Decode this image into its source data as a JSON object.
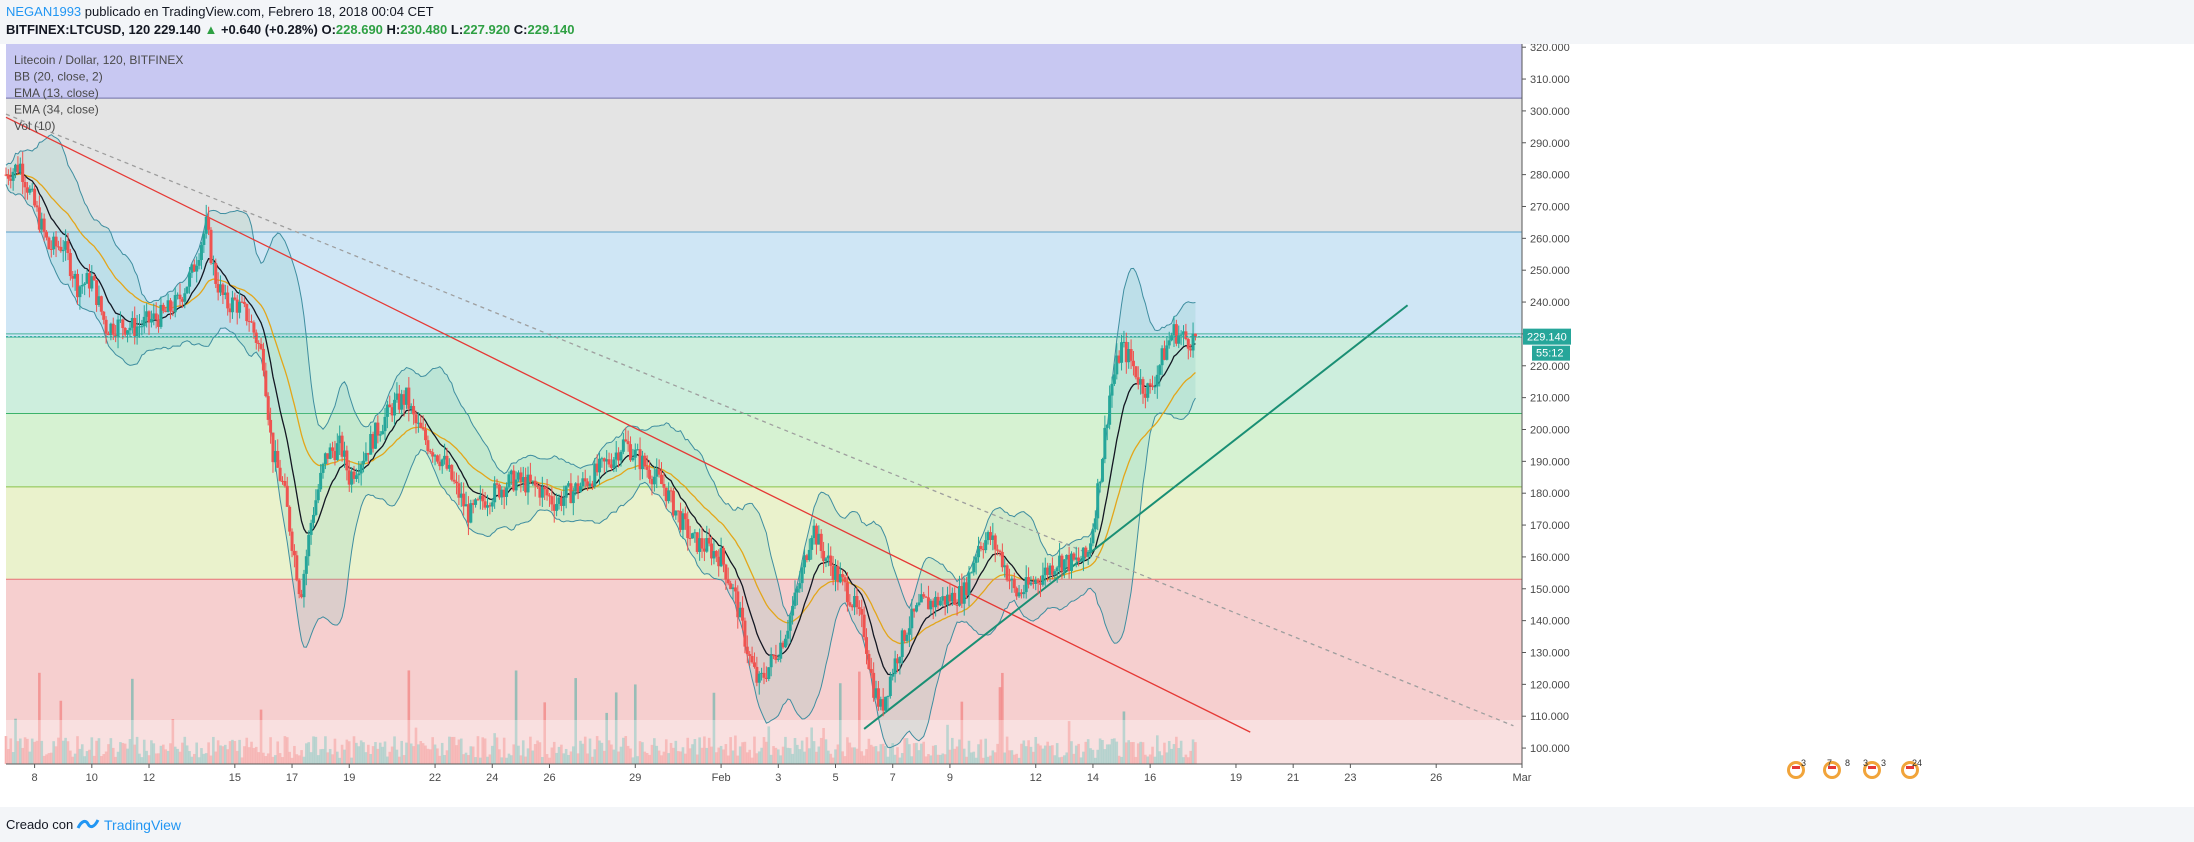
{
  "header": {
    "author": "NEGAN1993",
    "published": "publicado en TradingView.com, Febrero 18, 2018 00:04 CET",
    "symbol": "BITFINEX:LTCUSD, 120",
    "last": "229.140",
    "change": "+0.640 (+0.28%)",
    "o_label": "O:",
    "o_value": "228.690",
    "h_label": "H:",
    "h_value": "230.480",
    "l_label": "L:",
    "l_value": "227.920",
    "c_label": "C:",
    "c_value": "229.140"
  },
  "legend": [
    "Litecoin / Dollar, 120, BITFINEX",
    "BB (20, close, 2)",
    "EMA (13, close)",
    "EMA (34, close)",
    "Vol (10)"
  ],
  "footer": {
    "created_with": "Creado con",
    "brand": "TradingView"
  },
  "colors": {
    "up": "#26a69a",
    "down": "#ef5350",
    "bb_band": "#3f8ea0",
    "bb_fill": "#7fc8c0",
    "ema13": "#131722",
    "ema34": "#e3a61a",
    "trend_down": "#e53935",
    "trend_up": "#1a8f74",
    "dotted": "#9e9e9e",
    "price_tag": "#26a69a"
  },
  "chart_data": {
    "type": "candlestick",
    "symbol": "Litecoin / Dollar, 120, BITFINEX",
    "y_axis_ticks": [
      "100.000",
      "110.000",
      "120.000",
      "130.000",
      "140.000",
      "150.000",
      "160.000",
      "170.000",
      "180.000",
      "190.000",
      "200.000",
      "210.000",
      "220.000",
      "230.000",
      "240.000",
      "250.000",
      "260.000",
      "270.000",
      "280.000",
      "290.000",
      "300.000",
      "310.000",
      "320.000"
    ],
    "x_axis_ticks": [
      {
        "label": "8",
        "day": 8
      },
      {
        "label": "10",
        "day": 10
      },
      {
        "label": "12",
        "day": 12
      },
      {
        "label": "15",
        "day": 15
      },
      {
        "label": "17",
        "day": 17
      },
      {
        "label": "19",
        "day": 19
      },
      {
        "label": "22",
        "day": 22
      },
      {
        "label": "24",
        "day": 24
      },
      {
        "label": "26",
        "day": 26
      },
      {
        "label": "29",
        "day": 29
      },
      {
        "label": "Feb",
        "day": 32
      },
      {
        "label": "3",
        "day": 34
      },
      {
        "label": "5",
        "day": 36
      },
      {
        "label": "7",
        "day": 38
      },
      {
        "label": "9",
        "day": 40
      },
      {
        "label": "12",
        "day": 43
      },
      {
        "label": "14",
        "day": 45
      },
      {
        "label": "16",
        "day": 47
      },
      {
        "label": "19",
        "day": 50
      },
      {
        "label": "21",
        "day": 52
      },
      {
        "label": "23",
        "day": 54
      },
      {
        "label": "26",
        "day": 57
      },
      {
        "label": "Mar",
        "day": 60
      }
    ],
    "ylim": [
      95,
      321
    ],
    "xlim_days": [
      7,
      60
    ],
    "zones": [
      {
        "from": 304,
        "to": 321,
        "color": "#c8c8f2"
      },
      {
        "from": 262,
        "to": 304,
        "color": "#e4e4e4"
      },
      {
        "from": 229,
        "to": 262,
        "color": "#cfe6f5"
      },
      {
        "from": 205,
        "to": 229,
        "color": "#cdeedd"
      },
      {
        "from": 182,
        "to": 205,
        "color": "#d6f2d2"
      },
      {
        "from": 153,
        "to": 182,
        "color": "#eaf2cc"
      },
      {
        "from": 95,
        "to": 153,
        "color": "#f6cfcf"
      }
    ],
    "zone_lines": [
      {
        "value": 304,
        "color": "#6d6da8"
      },
      {
        "value": 262,
        "color": "#5aa0c8"
      },
      {
        "value": 230,
        "color": "#46b39a"
      },
      {
        "value": 229,
        "color": "#46b39a"
      },
      {
        "value": 205,
        "color": "#3bb36a"
      },
      {
        "value": 182,
        "color": "#8bc34a"
      },
      {
        "value": 153,
        "color": "#e57373"
      }
    ],
    "price_path": [
      [
        7.0,
        280
      ],
      [
        7.5,
        283
      ],
      [
        8.0,
        270
      ],
      [
        8.5,
        257
      ],
      [
        9.0,
        258
      ],
      [
        9.5,
        245
      ],
      [
        10.0,
        247
      ],
      [
        10.5,
        232
      ],
      [
        11.0,
        233
      ],
      [
        11.5,
        232
      ],
      [
        12.0,
        234
      ],
      [
        12.5,
        236
      ],
      [
        13.0,
        240
      ],
      [
        13.5,
        249
      ],
      [
        14.0,
        264
      ],
      [
        14.3,
        248
      ],
      [
        14.7,
        239
      ],
      [
        15.0,
        240
      ],
      [
        15.5,
        235
      ],
      [
        16.0,
        222
      ],
      [
        16.3,
        193
      ],
      [
        16.7,
        182
      ],
      [
        17.0,
        165
      ],
      [
        17.3,
        148
      ],
      [
        17.7,
        173
      ],
      [
        18.2,
        192
      ],
      [
        18.7,
        195
      ],
      [
        19.0,
        185
      ],
      [
        19.5,
        192
      ],
      [
        20.0,
        200
      ],
      [
        20.5,
        207
      ],
      [
        21.0,
        210
      ],
      [
        21.3,
        202
      ],
      [
        21.8,
        195
      ],
      [
        22.3,
        190
      ],
      [
        22.7,
        182
      ],
      [
        23.2,
        173
      ],
      [
        23.7,
        178
      ],
      [
        24.2,
        181
      ],
      [
        24.7,
        184
      ],
      [
        25.2,
        183
      ],
      [
        25.7,
        181
      ],
      [
        26.2,
        177
      ],
      [
        26.7,
        180
      ],
      [
        27.2,
        183
      ],
      [
        27.7,
        187
      ],
      [
        28.2,
        191
      ],
      [
        28.6,
        196
      ],
      [
        29.0,
        192
      ],
      [
        29.5,
        187
      ],
      [
        30.0,
        182
      ],
      [
        30.5,
        173
      ],
      [
        31.0,
        165
      ],
      [
        31.5,
        163
      ],
      [
        32.0,
        160
      ],
      [
        32.5,
        147
      ],
      [
        33.0,
        128
      ],
      [
        33.3,
        120
      ],
      [
        33.7,
        126
      ],
      [
        34.2,
        135
      ],
      [
        34.7,
        150
      ],
      [
        35.2,
        170
      ],
      [
        35.5,
        162
      ],
      [
        36.0,
        155
      ],
      [
        36.5,
        148
      ],
      [
        37.0,
        137
      ],
      [
        37.3,
        120
      ],
      [
        37.6,
        112
      ],
      [
        38.0,
        125
      ],
      [
        38.5,
        138
      ],
      [
        39.0,
        145
      ],
      [
        39.5,
        146
      ],
      [
        40.0,
        147
      ],
      [
        40.5,
        149
      ],
      [
        41.0,
        164
      ],
      [
        41.4,
        166
      ],
      [
        41.8,
        160
      ],
      [
        42.3,
        148
      ],
      [
        42.8,
        151
      ],
      [
        43.3,
        155
      ],
      [
        43.8,
        159
      ],
      [
        44.3,
        158
      ],
      [
        44.8,
        160
      ],
      [
        45.0,
        170
      ],
      [
        45.3,
        190
      ],
      [
        45.6,
        212
      ],
      [
        46.0,
        226
      ],
      [
        46.3,
        222
      ],
      [
        46.7,
        214
      ],
      [
        47.0,
        212
      ],
      [
        47.4,
        222
      ],
      [
        47.8,
        231
      ],
      [
        48.1,
        229
      ],
      [
        48.4,
        228
      ],
      [
        48.6,
        229.14
      ]
    ],
    "trendlines": [
      {
        "type": "resistance",
        "from": [
          7.0,
          298
        ],
        "to": [
          50.5,
          105
        ],
        "color": "#e53935"
      },
      {
        "type": "support",
        "from": [
          37.0,
          106
        ],
        "to": [
          56.0,
          239
        ],
        "color": "#1a8f74"
      },
      {
        "type": "dotted",
        "from": [
          7.0,
          299
        ],
        "to": [
          59.7,
          107
        ],
        "color": "#9e9e9e"
      }
    ],
    "last_price": {
      "value": 229.14,
      "label": "229.140",
      "timer": "55:12"
    },
    "event_icons": [
      "3",
      "7",
      "8",
      "3",
      "3",
      "24"
    ]
  }
}
